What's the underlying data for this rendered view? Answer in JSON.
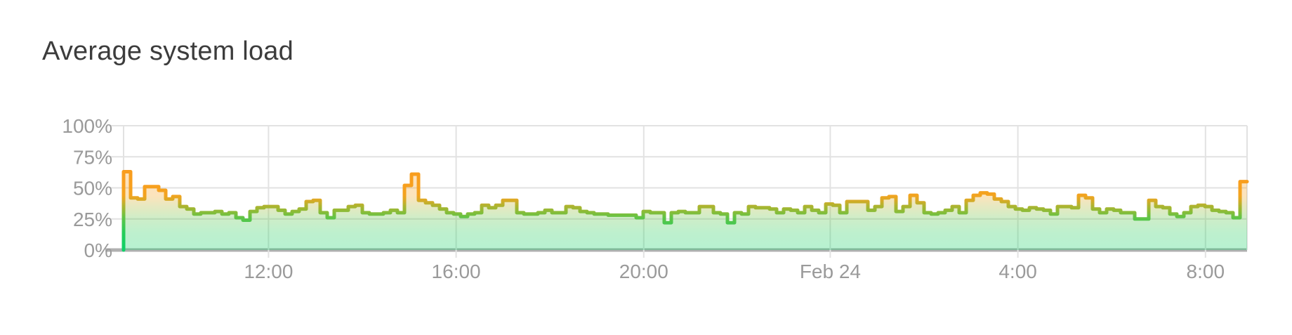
{
  "header": {
    "title": "Average system load"
  },
  "chart_data": {
    "type": "area",
    "subtype": "step-line",
    "title": "Average system load",
    "xlabel": "",
    "ylabel": "",
    "y_unit": "%",
    "ylim": [
      0,
      100
    ],
    "grid": true,
    "legend": false,
    "yticks": [
      {
        "label": "100%",
        "value": 100
      },
      {
        "label": "75%",
        "value": 75
      },
      {
        "label": "50%",
        "value": 50
      },
      {
        "label": "25%",
        "value": 25
      },
      {
        "label": "0%",
        "value": 0
      }
    ],
    "xticks": [
      {
        "label": "12:00",
        "pos": 0.129
      },
      {
        "label": "16:00",
        "pos": 0.296
      },
      {
        "label": "20:00",
        "pos": 0.463
      },
      {
        "label": "Feb 24",
        "pos": 0.629
      },
      {
        "label": "4:00",
        "pos": 0.796
      },
      {
        "label": "8:00",
        "pos": 0.963
      }
    ],
    "values": [
      63,
      42,
      41,
      51,
      51,
      48,
      41,
      43,
      35,
      33,
      29,
      30,
      30,
      31,
      29,
      30,
      26,
      24,
      31,
      34,
      35,
      35,
      32,
      29,
      31,
      33,
      39,
      40,
      30,
      26,
      32,
      32,
      35,
      36,
      30,
      29,
      29,
      30,
      32,
      30,
      52,
      61,
      40,
      38,
      36,
      33,
      30,
      29,
      27,
      29,
      30,
      36,
      34,
      36,
      40,
      40,
      30,
      29,
      29,
      30,
      32,
      30,
      30,
      35,
      34,
      31,
      30,
      29,
      29,
      28,
      28,
      28,
      28,
      26,
      31,
      30,
      30,
      22,
      30,
      31,
      30,
      30,
      35,
      35,
      30,
      29,
      22,
      30,
      29,
      35,
      34,
      34,
      33,
      30,
      33,
      32,
      30,
      35,
      32,
      30,
      37,
      36,
      30,
      39,
      39,
      39,
      32,
      35,
      42,
      43,
      31,
      35,
      44,
      38,
      30,
      29,
      30,
      32,
      35,
      30,
      40,
      44,
      46,
      45,
      41,
      39,
      35,
      33,
      32,
      34,
      33,
      32,
      29,
      35,
      35,
      34,
      44,
      42,
      33,
      30,
      33,
      32,
      30,
      30,
      25,
      25,
      40,
      35,
      34,
      29,
      27,
      30,
      35,
      36,
      35,
      32,
      31,
      30,
      26,
      55
    ],
    "colors": {
      "title_text": "#3c3c3c",
      "axis_text": "#9a9a9a",
      "grid": "#e2e2e2",
      "baseline": "#b0b0b0",
      "fill_opacity": 0.3,
      "line_gradient": [
        {
          "offset": 0.0,
          "color": "#f8941c"
        },
        {
          "offset": 0.47,
          "color": "#f89f1e"
        },
        {
          "offset": 0.56,
          "color": "#f3a31f"
        },
        {
          "offset": 0.6,
          "color": "#d9aa26"
        },
        {
          "offset": 0.645,
          "color": "#aeb430"
        },
        {
          "offset": 0.69,
          "color": "#8cbb37"
        },
        {
          "offset": 0.74,
          "color": "#5fc447"
        },
        {
          "offset": 0.86,
          "color": "#25cd5a"
        },
        {
          "offset": 1.0,
          "color": "#0ed167"
        }
      ]
    }
  }
}
